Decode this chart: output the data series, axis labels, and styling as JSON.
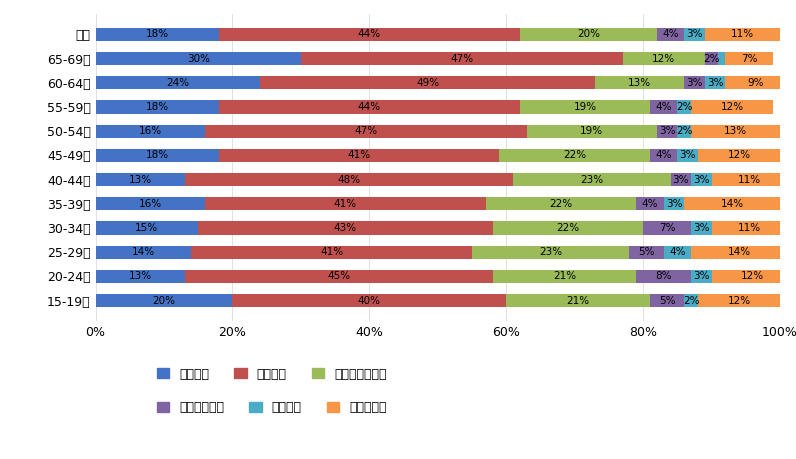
{
  "categories": [
    "総計",
    "65-69歳",
    "60-64歳",
    "55-59歳",
    "50-54歳",
    "45-49歳",
    "40-44歳",
    "35-39歳",
    "30-34歳",
    "25-29歳",
    "20-24歳",
    "15-19歳"
  ],
  "categories_display": [
    "総計",
    "65-69歳",
    "60-64歳",
    "55-59歳",
    "50-54歳",
    "45-49歳",
    "40-44歳",
    "35-39歳",
    "30-34歳",
    "25-29歳",
    "20-24歳",
    "15-19歳"
  ],
  "series": {
    "そう思う": [
      18,
      30,
      24,
      18,
      16,
      18,
      13,
      16,
      15,
      14,
      13,
      20
    ],
    "やや思う": [
      44,
      47,
      49,
      44,
      47,
      41,
      48,
      41,
      43,
      41,
      45,
      40
    ],
    "どちらでもない": [
      20,
      12,
      13,
      19,
      19,
      22,
      23,
      22,
      22,
      23,
      21,
      21
    ],
    "やや思わない": [
      4,
      2,
      3,
      4,
      3,
      4,
      3,
      4,
      7,
      5,
      8,
      5
    ],
    "思わない": [
      3,
      1,
      3,
      2,
      2,
      3,
      3,
      3,
      3,
      4,
      3,
      2
    ],
    "わからない": [
      11,
      7,
      9,
      12,
      13,
      12,
      11,
      14,
      11,
      14,
      12,
      12
    ]
  },
  "colors": {
    "そう思う": "#4472C4",
    "やや思う": "#C0504D",
    "どちらでもない": "#9BBB59",
    "やや思わない": "#8064A2",
    "思わない": "#4BACC6",
    "わからない": "#F79646"
  },
  "legend_order": [
    "そう思う",
    "やや思う",
    "どちらでもない",
    "やや思わない",
    "思わない",
    "わからない"
  ],
  "ylabel_fontsize": 9,
  "xlabel_fontsize": 9,
  "label_fontsize": 7.5,
  "bar_height": 0.55,
  "background_color": "#FFFFFF"
}
